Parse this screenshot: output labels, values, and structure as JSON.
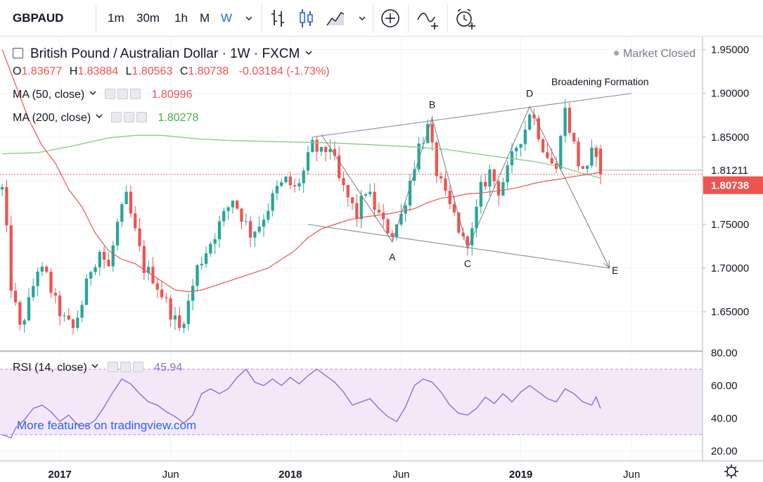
{
  "toolbar": {
    "symbol": "GBPAUD",
    "intervals": [
      "1m",
      "30m",
      "1h",
      "M",
      "W"
    ],
    "active_interval": "W",
    "icons": [
      "chevron-down-icon",
      "bar-style-icon",
      "candle-style-icon",
      "area-style-icon",
      "chevron-down-icon",
      "add-compare-icon",
      "indicator-icon",
      "alert-clock-icon"
    ]
  },
  "header": {
    "title": "British Pound / Australian Dollar · 1W · FXCM",
    "market_status": "Market Closed",
    "ohlc": {
      "o_label": "O",
      "o": "1.83677",
      "h_label": "H",
      "h": "1.83884",
      "l_label": "L",
      "l": "1.80563",
      "c_label": "C",
      "c": "1.80738",
      "change": "-0.03184 (-1.73%)"
    },
    "ma50": {
      "label": "MA (50, close)",
      "value": "1.80996"
    },
    "ma200": {
      "label": "MA (200, close)",
      "value": "1.80278"
    },
    "rsi": {
      "label": "RSI (14, close)",
      "value": "45.94"
    }
  },
  "watermark": "More features on tradingview.com",
  "colors": {
    "up": "#26a69a",
    "down": "#ef5350",
    "ma50": "#ef5350",
    "ma200": "#8fcc8f",
    "rsi": "#8e6fcf",
    "rsi_band": "#f3e5f7"
  },
  "chart_data": [
    {
      "type": "candlestick",
      "title": "British Pound / Australian Dollar · 1W · FXCM",
      "x_tick_labels": [
        "2017",
        "Jun",
        "2018",
        "Jun",
        "2019",
        "Jun"
      ],
      "y_ticks": [
        1.65,
        1.7,
        1.75,
        1.8,
        1.85,
        1.9,
        1.95
      ],
      "y_tick_labels": [
        "1.65000",
        "1.70000",
        "1.75000",
        "1.80000",
        "1.85000",
        "1.90000",
        "1.95000"
      ],
      "ylim": [
        1.605,
        1.965
      ],
      "price_labels": {
        "last": "1.80738",
        "previous_close": "1.81211"
      },
      "anchors": [
        [
          0,
          1.79
        ],
        [
          1,
          1.74
        ],
        [
          2,
          1.68
        ],
        [
          4,
          1.63
        ],
        [
          6,
          1.66
        ],
        [
          8,
          1.7
        ],
        [
          10,
          1.69
        ],
        [
          12,
          1.66
        ],
        [
          14,
          1.64
        ],
        [
          16,
          1.63
        ],
        [
          18,
          1.66
        ],
        [
          20,
          1.7
        ],
        [
          22,
          1.72
        ],
        [
          24,
          1.7
        ],
        [
          26,
          1.75
        ],
        [
          28,
          1.78
        ],
        [
          30,
          1.74
        ],
        [
          32,
          1.7
        ],
        [
          34,
          1.69
        ],
        [
          36,
          1.67
        ],
        [
          38,
          1.65
        ],
        [
          40,
          1.63
        ],
        [
          42,
          1.66
        ],
        [
          44,
          1.7
        ],
        [
          46,
          1.72
        ],
        [
          48,
          1.74
        ],
        [
          50,
          1.76
        ],
        [
          52,
          1.78
        ],
        [
          54,
          1.76
        ],
        [
          56,
          1.74
        ],
        [
          58,
          1.75
        ],
        [
          60,
          1.77
        ],
        [
          62,
          1.79
        ],
        [
          64,
          1.8
        ],
        [
          66,
          1.79
        ],
        [
          68,
          1.81
        ],
        [
          70,
          1.84
        ],
        [
          72,
          1.83
        ],
        [
          74,
          1.84
        ],
        [
          76,
          1.8
        ],
        [
          78,
          1.78
        ],
        [
          80,
          1.76
        ],
        [
          82,
          1.79
        ],
        [
          84,
          1.77
        ],
        [
          86,
          1.75
        ],
        [
          88,
          1.74
        ],
        [
          90,
          1.76
        ],
        [
          92,
          1.8
        ],
        [
          94,
          1.84
        ],
        [
          96,
          1.86
        ],
        [
          98,
          1.81
        ],
        [
          100,
          1.78
        ],
        [
          102,
          1.76
        ],
        [
          104,
          1.73
        ],
        [
          106,
          1.74
        ],
        [
          108,
          1.79
        ],
        [
          110,
          1.81
        ],
        [
          112,
          1.79
        ],
        [
          114,
          1.81
        ],
        [
          116,
          1.84
        ],
        [
          118,
          1.86
        ],
        [
          119,
          1.88
        ],
        [
          120,
          1.87
        ],
        [
          122,
          1.84
        ],
        [
          124,
          1.82
        ],
        [
          125,
          1.81
        ],
        [
          126,
          1.86
        ],
        [
          127,
          1.88
        ],
        [
          128,
          1.86
        ],
        [
          130,
          1.82
        ],
        [
          132,
          1.81
        ],
        [
          133,
          1.83
        ],
        [
          134,
          1.835
        ],
        [
          135,
          1.807
        ]
      ],
      "ma50": [
        [
          0,
          1.95
        ],
        [
          3,
          1.91
        ],
        [
          6,
          1.87
        ],
        [
          9,
          1.84
        ],
        [
          12,
          1.82
        ],
        [
          15,
          1.79
        ],
        [
          18,
          1.77
        ],
        [
          21,
          1.74
        ],
        [
          24,
          1.72
        ],
        [
          27,
          1.71
        ],
        [
          30,
          1.705
        ],
        [
          33,
          1.695
        ],
        [
          36,
          1.685
        ],
        [
          39,
          1.675
        ],
        [
          42,
          1.673
        ],
        [
          45,
          1.675
        ],
        [
          48,
          1.68
        ],
        [
          51,
          1.685
        ],
        [
          54,
          1.69
        ],
        [
          57,
          1.695
        ],
        [
          60,
          1.7
        ],
        [
          63,
          1.71
        ],
        [
          66,
          1.72
        ],
        [
          69,
          1.735
        ],
        [
          72,
          1.745
        ],
        [
          75,
          1.75
        ],
        [
          78,
          1.755
        ],
        [
          81,
          1.758
        ],
        [
          84,
          1.76
        ],
        [
          87,
          1.762
        ],
        [
          90,
          1.765
        ],
        [
          93,
          1.768
        ],
        [
          96,
          1.775
        ],
        [
          99,
          1.78
        ],
        [
          102,
          1.782
        ],
        [
          105,
          1.785
        ],
        [
          108,
          1.786
        ],
        [
          111,
          1.788
        ],
        [
          114,
          1.79
        ],
        [
          117,
          1.793
        ],
        [
          120,
          1.797
        ],
        [
          123,
          1.8
        ],
        [
          126,
          1.802
        ],
        [
          129,
          1.805
        ],
        [
          132,
          1.807
        ],
        [
          135,
          1.81
        ]
      ],
      "ma200": [
        [
          0,
          1.831
        ],
        [
          8,
          1.832
        ],
        [
          16,
          1.84
        ],
        [
          24,
          1.849
        ],
        [
          30,
          1.852
        ],
        [
          36,
          1.852
        ],
        [
          44,
          1.848
        ],
        [
          52,
          1.846
        ],
        [
          60,
          1.845
        ],
        [
          68,
          1.844
        ],
        [
          76,
          1.843
        ],
        [
          84,
          1.841
        ],
        [
          92,
          1.839
        ],
        [
          100,
          1.836
        ],
        [
          108,
          1.83
        ],
        [
          114,
          1.826
        ],
        [
          120,
          1.822
        ],
        [
          126,
          1.816
        ],
        [
          130,
          1.81
        ],
        [
          135,
          1.803
        ]
      ],
      "annotations": [
        {
          "text": "Broadening Formation"
        },
        {
          "text": "A",
          "x": 88,
          "y": 1.73
        },
        {
          "text": "B",
          "x": 97,
          "y": 1.872
        },
        {
          "text": "C",
          "x": 105,
          "y": 1.722
        },
        {
          "text": "D",
          "x": 119,
          "y": 1.885
        },
        {
          "text": "E",
          "x": 137,
          "y": 1.7
        }
      ],
      "trendlines": [
        {
          "name": "upper-boundary",
          "from": [
            70,
            1.85
          ],
          "to": [
            142,
            1.9
          ]
        },
        {
          "name": "lower-boundary",
          "from": [
            69,
            1.75
          ],
          "to": [
            137,
            1.7
          ]
        },
        {
          "name": "wave-line",
          "points": [
            [
              72,
              1.853
            ],
            [
              88,
              1.73
            ],
            [
              97,
              1.872
            ],
            [
              105,
              1.722
            ],
            [
              119,
              1.885
            ],
            [
              137,
              1.7
            ]
          ]
        }
      ],
      "xlim": [
        -0.5,
        158
      ]
    },
    {
      "type": "line",
      "title": "RSI (14, close)",
      "y_ticks": [
        20,
        40,
        60,
        80
      ],
      "y_tick_labels": [
        "20.00",
        "40.00",
        "60.00",
        "80.00"
      ],
      "ylim": [
        14,
        81
      ],
      "band": [
        30,
        70
      ],
      "values": [
        [
          0,
          30
        ],
        [
          2,
          28
        ],
        [
          3,
          34
        ],
        [
          5,
          39
        ],
        [
          7,
          46
        ],
        [
          9,
          48
        ],
        [
          11,
          44
        ],
        [
          13,
          38
        ],
        [
          15,
          42
        ],
        [
          17,
          36
        ],
        [
          19,
          35
        ],
        [
          21,
          39
        ],
        [
          23,
          47
        ],
        [
          25,
          56
        ],
        [
          27,
          64
        ],
        [
          29,
          61
        ],
        [
          31,
          55
        ],
        [
          33,
          50
        ],
        [
          35,
          48
        ],
        [
          37,
          44
        ],
        [
          39,
          41
        ],
        [
          41,
          37
        ],
        [
          43,
          42
        ],
        [
          45,
          55
        ],
        [
          47,
          58
        ],
        [
          49,
          55
        ],
        [
          51,
          58
        ],
        [
          53,
          65
        ],
        [
          55,
          70
        ],
        [
          57,
          62
        ],
        [
          59,
          60
        ],
        [
          61,
          64
        ],
        [
          63,
          60
        ],
        [
          65,
          65
        ],
        [
          67,
          61
        ],
        [
          69,
          66
        ],
        [
          71,
          70
        ],
        [
          73,
          66
        ],
        [
          75,
          62
        ],
        [
          77,
          56
        ],
        [
          79,
          48
        ],
        [
          81,
          50
        ],
        [
          83,
          52
        ],
        [
          85,
          46
        ],
        [
          87,
          41
        ],
        [
          89,
          38
        ],
        [
          91,
          47
        ],
        [
          93,
          60
        ],
        [
          95,
          64
        ],
        [
          97,
          62
        ],
        [
          99,
          56
        ],
        [
          101,
          48
        ],
        [
          103,
          43
        ],
        [
          105,
          42
        ],
        [
          107,
          46
        ],
        [
          109,
          53
        ],
        [
          111,
          49
        ],
        [
          113,
          55
        ],
        [
          115,
          50
        ],
        [
          117,
          56
        ],
        [
          119,
          60
        ],
        [
          121,
          56
        ],
        [
          123,
          52
        ],
        [
          125,
          50
        ],
        [
          127,
          58
        ],
        [
          129,
          55
        ],
        [
          131,
          50
        ],
        [
          133,
          48
        ],
        [
          134,
          53
        ],
        [
          135,
          46
        ]
      ]
    }
  ],
  "bottom_axis": {
    "settings_icon": "gear-icon"
  }
}
